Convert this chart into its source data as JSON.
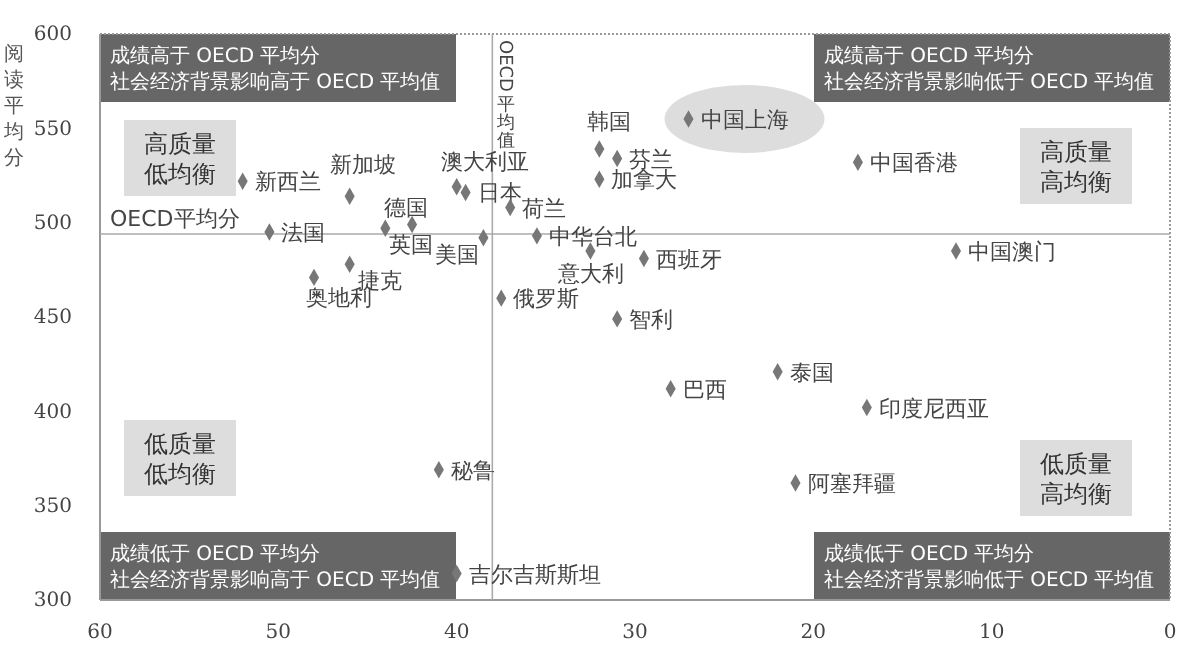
{
  "chart_data": {
    "type": "scatter",
    "ylabel": "阅读平均分",
    "xlim": [
      60,
      0
    ],
    "xticks": [
      60,
      50,
      40,
      30,
      20,
      10,
      0
    ],
    "ylim": [
      300,
      600
    ],
    "yticks": [
      300,
      350,
      400,
      450,
      500,
      550,
      600
    ],
    "grid": false,
    "marker": "diamond",
    "ref_lines": [
      {
        "axis": "y",
        "value": 494,
        "label": "OECD平均分"
      },
      {
        "axis": "x",
        "value": 38,
        "label": "OECD平均值"
      }
    ],
    "annotations": [
      "成绩高于 OECD 平均分",
      "社会经济背景影响高于 OECD 平均值",
      "成绩高于 OECD 平均分",
      "社会经济背景影响低于 OECD 平均值",
      "成绩低于 OECD 平均分",
      "社会经济背景影响高于 OECD 平均值",
      "成绩低于 OECD 平均分",
      "社会经济背景影响低于 OECD 平均值",
      "高质量低均衡",
      "高质量高均衡",
      "低质量低均衡",
      "低质量高均衡"
    ],
    "series": [
      {
        "name": "新西兰",
        "color": "#777777",
        "x": [
          52
        ],
        "values": [
          522
        ]
      },
      {
        "name": "新加坡",
        "color": "#777777",
        "x": [
          46
        ],
        "values": [
          514
        ]
      },
      {
        "name": "澳大利亚",
        "color": "#777777",
        "x": [
          40
        ],
        "values": [
          519
        ]
      },
      {
        "name": "日本",
        "color": "#777777",
        "x": [
          39.5
        ],
        "values": [
          516
        ]
      },
      {
        "name": "德国",
        "color": "#777777",
        "x": [
          42.5
        ],
        "values": [
          499
        ]
      },
      {
        "name": "英国",
        "color": "#777777",
        "x": [
          44
        ],
        "values": [
          497
        ]
      },
      {
        "name": "法国",
        "color": "#777777",
        "x": [
          50.5
        ],
        "values": [
          495
        ]
      },
      {
        "name": "捷克",
        "color": "#777777",
        "x": [
          46
        ],
        "values": [
          478
        ]
      },
      {
        "name": "奥地利",
        "color": "#777777",
        "x": [
          48
        ],
        "values": [
          471
        ]
      },
      {
        "name": "美国",
        "color": "#777777",
        "x": [
          38.5
        ],
        "values": [
          492
        ]
      },
      {
        "name": "荷兰",
        "color": "#777777",
        "x": [
          37
        ],
        "values": [
          508
        ]
      },
      {
        "name": "俄罗斯",
        "color": "#777777",
        "x": [
          37.5
        ],
        "values": [
          460
        ]
      },
      {
        "name": "韩国",
        "color": "#777777",
        "x": [
          32
        ],
        "values": [
          539
        ]
      },
      {
        "name": "芬兰",
        "color": "#777777",
        "x": [
          31
        ],
        "values": [
          534
        ]
      },
      {
        "name": "加拿大",
        "color": "#777777",
        "x": [
          32
        ],
        "values": [
          523
        ]
      },
      {
        "name": "中华台北",
        "color": "#777777",
        "x": [
          35.5
        ],
        "values": [
          493
        ]
      },
      {
        "name": "意大利",
        "color": "#777777",
        "x": [
          32.5
        ],
        "values": [
          485
        ]
      },
      {
        "name": "西班牙",
        "color": "#777777",
        "x": [
          29.5
        ],
        "values": [
          481
        ]
      },
      {
        "name": "智利",
        "color": "#777777",
        "x": [
          31
        ],
        "values": [
          449
        ]
      },
      {
        "name": "巴西",
        "color": "#777777",
        "x": [
          28
        ],
        "values": [
          412
        ]
      },
      {
        "name": "泰国",
        "color": "#777777",
        "x": [
          22
        ],
        "values": [
          421
        ]
      },
      {
        "name": "中国上海",
        "color": "#777777",
        "x": [
          27
        ],
        "values": [
          555
        ]
      },
      {
        "name": "中国香港",
        "color": "#777777",
        "x": [
          17.5
        ],
        "values": [
          532
        ]
      },
      {
        "name": "中国澳门",
        "color": "#777777",
        "x": [
          12
        ],
        "values": [
          485
        ]
      },
      {
        "name": "印度尼西亚",
        "color": "#777777",
        "x": [
          17
        ],
        "values": [
          402
        ]
      },
      {
        "name": "阿塞拜疆",
        "color": "#777777",
        "x": [
          21
        ],
        "values": [
          362
        ]
      },
      {
        "name": "秘鲁",
        "color": "#777777",
        "x": [
          41
        ],
        "values": [
          369
        ]
      },
      {
        "name": "吉尔吉斯斯坦",
        "color": "#777777",
        "x": [
          40
        ],
        "values": [
          314
        ]
      }
    ]
  }
}
